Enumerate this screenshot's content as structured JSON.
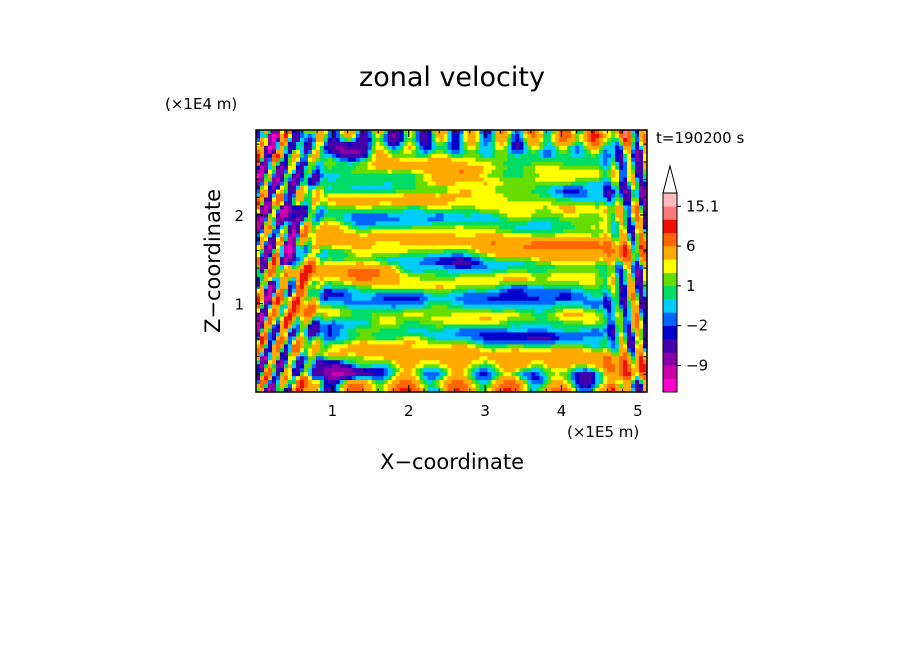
{
  "chart_data": {
    "type": "heatmap",
    "title": "zonal velocity",
    "xlabel": "X−coordinate",
    "ylabel": "Z−coordinate",
    "x_unit": "(×1E5 m)",
    "y_unit": "(×1E4 m)",
    "time_label": "t=190200 s",
    "xlim": [
      0,
      5.12
    ],
    "ylim": [
      0,
      2.96
    ],
    "x_ticks": [
      1,
      2,
      3,
      4,
      5
    ],
    "y_ticks": [
      1,
      2
    ],
    "x_tick_labels": [
      "1",
      "2",
      "3",
      "4",
      "5"
    ],
    "y_tick_labels": [
      "1",
      "2"
    ],
    "colorbar": {
      "levels": [
        -15,
        -12,
        -9,
        -6,
        -3,
        -2,
        -1,
        0,
        1,
        2,
        3,
        6,
        9,
        12,
        15.1
      ],
      "colors": [
        "#ff00cc",
        "#cc00aa",
        "#8800aa",
        "#4400aa",
        "#0000cc",
        "#0066ff",
        "#00ccff",
        "#00dd66",
        "#66dd00",
        "#ffff00",
        "#ffaa00",
        "#ff6600",
        "#ee1100",
        "#ff7777",
        "#ffbbbb"
      ],
      "extend_max_color": "#ffffff",
      "labels": [
        "15.1",
        "6",
        "1",
        "−2",
        "−9"
      ],
      "label_values": [
        15.1,
        6,
        1,
        -2,
        -9
      ]
    }
  }
}
